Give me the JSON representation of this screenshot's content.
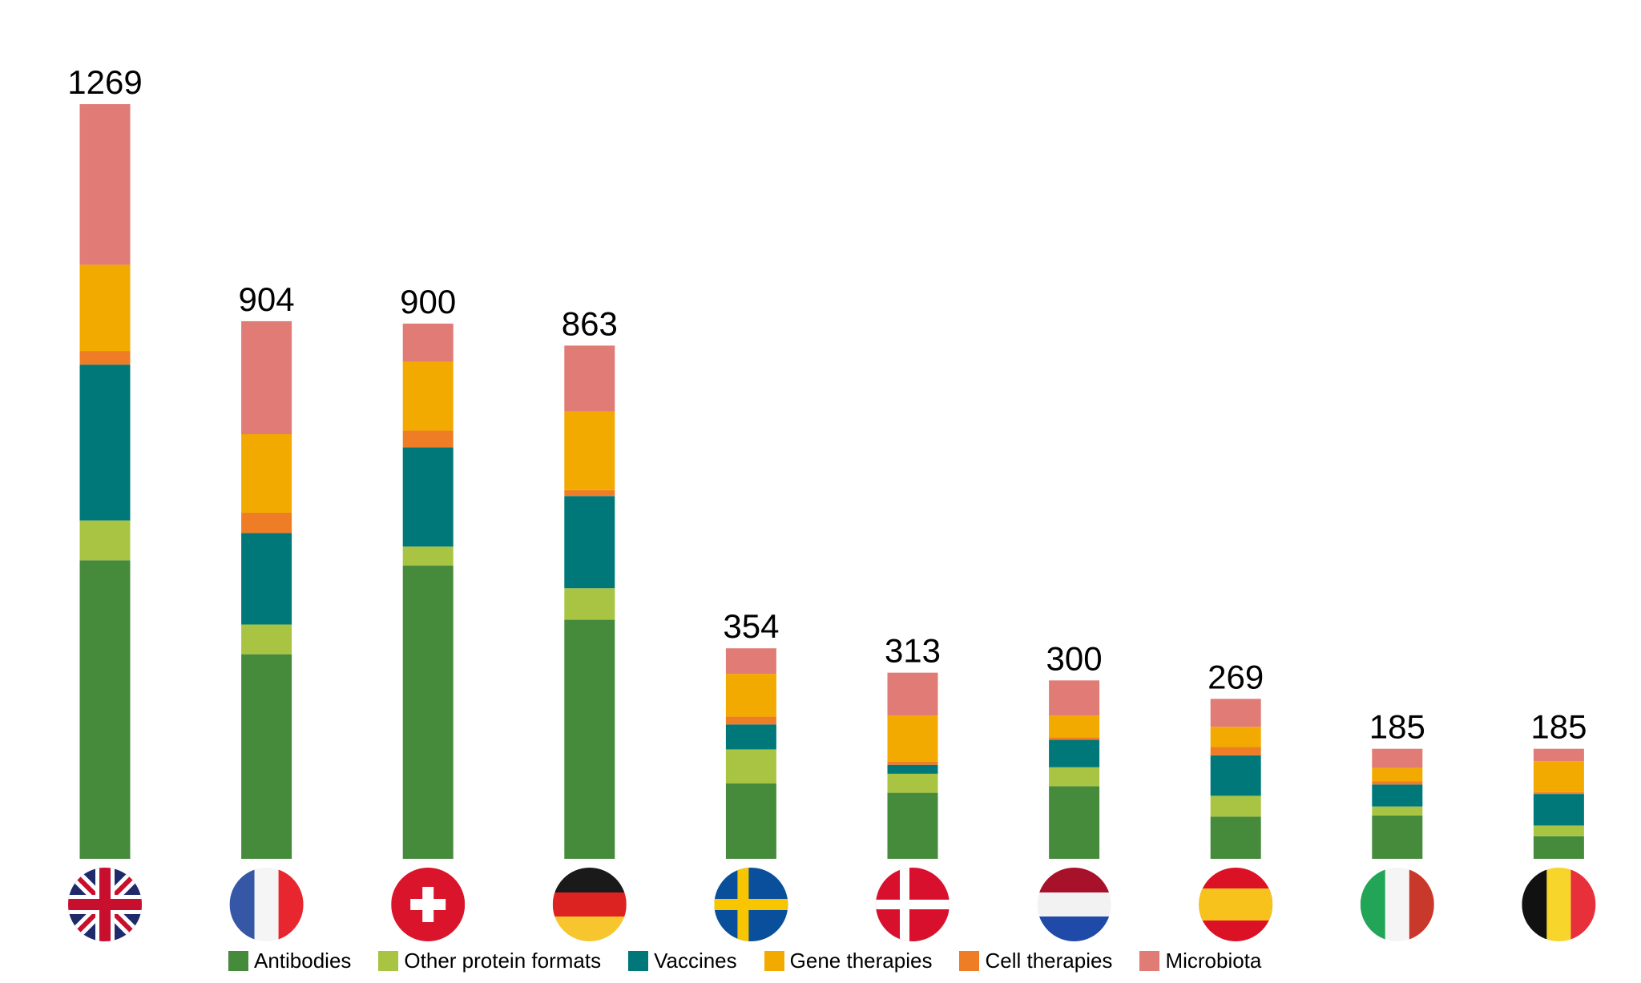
{
  "chart_data": {
    "type": "bar",
    "stacked": true,
    "categories": [
      "United Kingdom",
      "France",
      "Switzerland",
      "Germany",
      "Sweden",
      "Denmark",
      "Netherlands",
      "Spain",
      "Italy",
      "Belgium"
    ],
    "totals": [
      1269,
      904,
      900,
      863,
      354,
      313,
      300,
      269,
      185,
      185
    ],
    "total_labels": [
      "1269",
      "904",
      "900",
      "863",
      "354",
      "313",
      "300",
      "269",
      "185",
      "185"
    ],
    "series": [
      {
        "name": "Antibodies",
        "color": "#468A3C",
        "values": [
          502,
          344,
          493,
          402,
          127,
          111,
          122,
          71,
          73,
          38
        ]
      },
      {
        "name": "Other protein formats",
        "color": "#A9C442",
        "values": [
          67,
          50,
          32,
          53,
          57,
          32,
          32,
          35,
          15,
          18
        ]
      },
      {
        "name": "Vaccines",
        "color": "#00787A",
        "values": [
          262,
          154,
          167,
          155,
          42,
          15,
          46,
          68,
          37,
          53
        ]
      },
      {
        "name": "Cell therapies",
        "color": "#EE7D26",
        "values": [
          23,
          34,
          28,
          10,
          13,
          5,
          4,
          14,
          5,
          3
        ]
      },
      {
        "name": "Gene therapies",
        "color": "#F3AA00",
        "values": [
          145,
          132,
          116,
          132,
          72,
          78,
          37,
          34,
          23,
          52
        ]
      },
      {
        "name": "Microbiota",
        "color": "#E07B76",
        "values": [
          270,
          190,
          64,
          111,
          43,
          72,
          59,
          47,
          32,
          21
        ]
      }
    ],
    "legend": {
      "position": "bottom",
      "order": [
        "Antibodies",
        "Other protein formats",
        "Vaccines",
        "Gene therapies",
        "Cell therapies",
        "Microbiota"
      ]
    },
    "axes": {
      "visible": false,
      "grid": false,
      "ylim": [
        0,
        1269
      ]
    },
    "x_tick_icons": [
      "flag-uk-icon",
      "flag-france-icon",
      "flag-switzerland-icon",
      "flag-germany-icon",
      "flag-sweden-icon",
      "flag-denmark-icon",
      "flag-netherlands-icon",
      "flag-spain-icon",
      "flag-italy-icon",
      "flag-belgium-icon"
    ]
  }
}
